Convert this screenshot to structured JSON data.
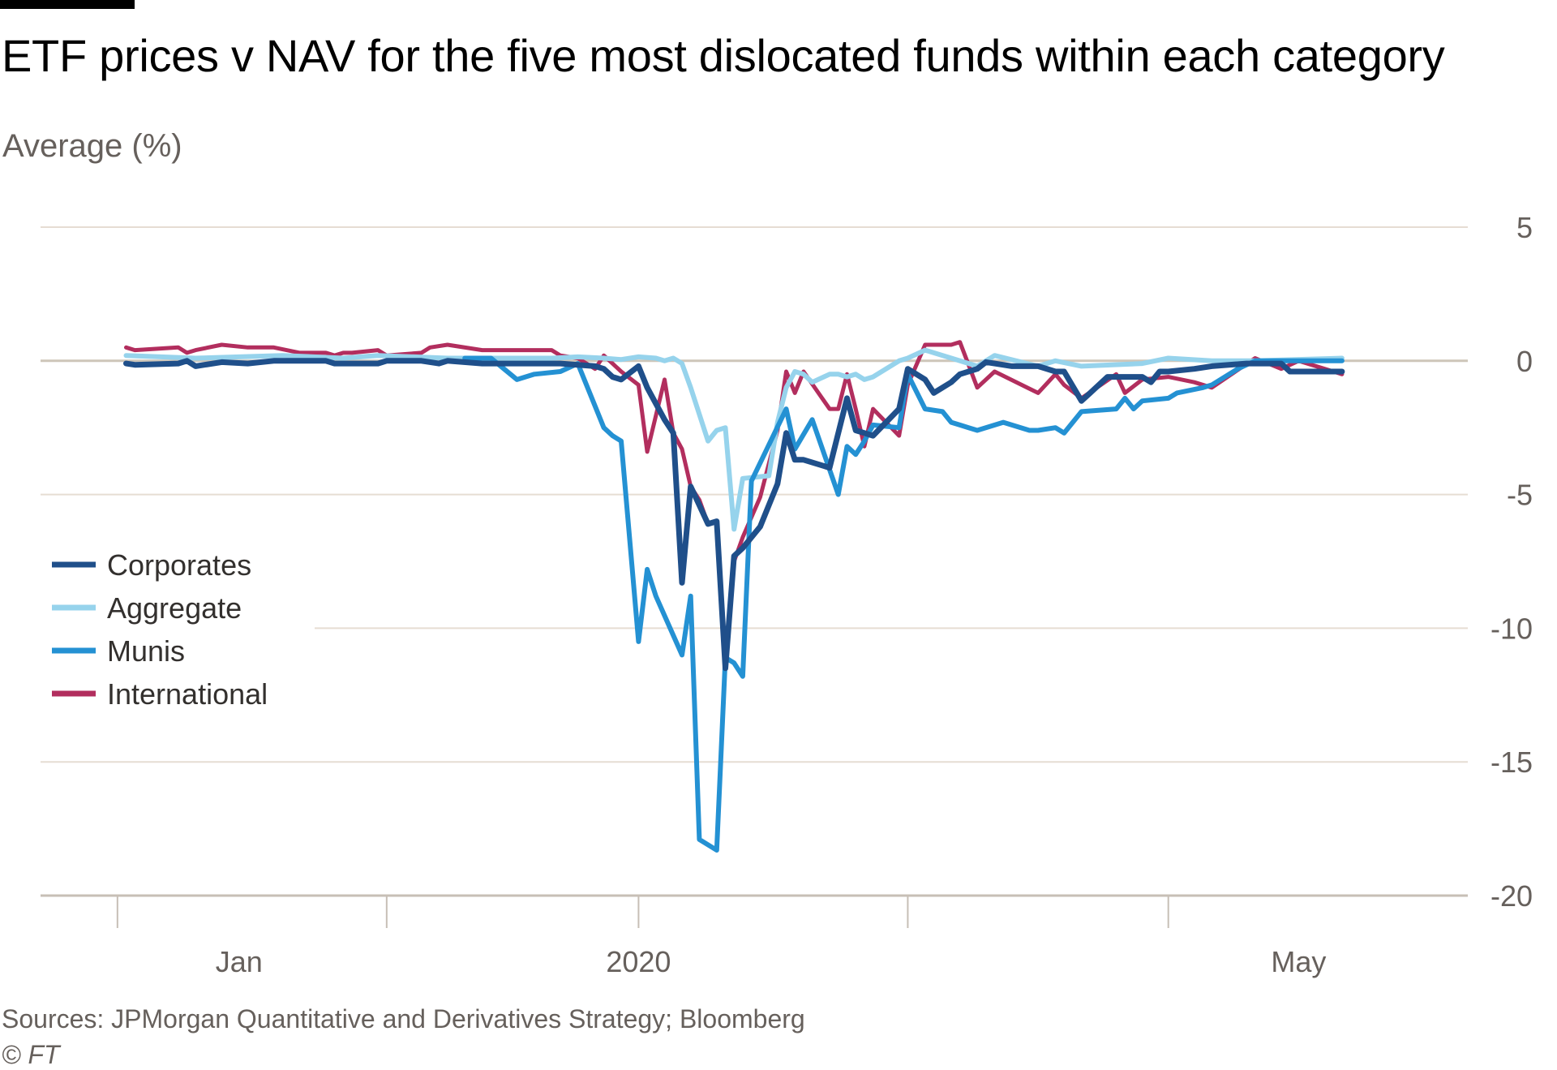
{
  "header": {
    "title": "ETF prices v NAV for the five most dislocated funds within each category",
    "subtitle": "Average (%)"
  },
  "footer": {
    "source": "Sources: JPMorgan Quantitative and Derivatives Strategy; Bloomberg",
    "copyright": "© FT"
  },
  "chart_data": {
    "type": "line",
    "title": "ETF prices v NAV for the five most dislocated funds within each category",
    "ylabel": "Average (%)",
    "xlabel": "",
    "ylim": [
      -20,
      5
    ],
    "y_ticks": [
      5,
      0,
      -5,
      -10,
      -15,
      -20
    ],
    "x_tick_labels": [
      {
        "label": "Jan",
        "x": "2020-01-15"
      },
      {
        "label": "2020",
        "x": "2020-03-01"
      },
      {
        "label": "May",
        "x": "2020-05-16"
      }
    ],
    "x_ticks": [
      "2020-01-01",
      "2020-02-01",
      "2020-03-01",
      "2020-04-01",
      "2020-05-01"
    ],
    "xlim": [
      "2019-12-28",
      "2020-05-31"
    ],
    "grid": true,
    "legend_position": "left",
    "colors": {
      "Corporates": "#1f4f8a",
      "Aggregate": "#96d3ec",
      "Munis": "#2491d3",
      "International": "#b22e5e",
      "gridline": "#e6ddd3",
      "zeroline": "#cec6b9",
      "axis": "#c7bfb6"
    },
    "series": [
      {
        "name": "Corporates",
        "x": [
          "2020-01-02",
          "2020-01-03",
          "2020-01-08",
          "2020-01-09",
          "2020-01-10",
          "2020-01-13",
          "2020-01-16",
          "2020-01-19",
          "2020-01-22",
          "2020-01-25",
          "2020-01-26",
          "2020-01-27",
          "2020-01-31",
          "2020-02-01",
          "2020-02-05",
          "2020-02-07",
          "2020-02-08",
          "2020-02-12",
          "2020-02-15",
          "2020-02-20",
          "2020-02-21",
          "2020-02-25",
          "2020-02-26",
          "2020-02-27",
          "2020-02-28",
          "2020-03-01",
          "2020-03-02",
          "2020-03-04",
          "2020-03-05",
          "2020-03-06",
          "2020-03-07",
          "2020-03-09",
          "2020-03-10",
          "2020-03-11",
          "2020-03-12",
          "2020-03-13",
          "2020-03-15",
          "2020-03-17",
          "2020-03-18",
          "2020-03-19",
          "2020-03-20",
          "2020-03-23",
          "2020-03-25",
          "2020-03-26",
          "2020-03-27",
          "2020-03-28",
          "2020-03-31",
          "2020-04-01",
          "2020-04-03",
          "2020-04-04",
          "2020-04-06",
          "2020-04-07",
          "2020-04-09",
          "2020-04-10",
          "2020-04-11",
          "2020-04-13",
          "2020-04-16",
          "2020-04-18",
          "2020-04-19",
          "2020-04-21",
          "2020-04-22",
          "2020-04-24",
          "2020-04-26",
          "2020-04-28",
          "2020-04-29",
          "2020-04-30",
          "2020-05-01",
          "2020-05-04",
          "2020-05-06",
          "2020-05-10",
          "2020-05-14",
          "2020-05-15",
          "2020-05-18",
          "2020-05-19",
          "2020-05-21"
        ],
        "values": [
          -0.1,
          -0.15,
          -0.1,
          0,
          -0.2,
          -0.05,
          -0.1,
          0,
          0,
          0,
          -0.1,
          -0.1,
          -0.1,
          0,
          0,
          -0.1,
          0,
          -0.1,
          -0.1,
          -0.1,
          -0.1,
          -0.2,
          -0.3,
          -0.6,
          -0.7,
          -0.2,
          -1.0,
          -2.2,
          -2.7,
          -8.3,
          -4.7,
          -6.1,
          -6.0,
          -11.5,
          -7.3,
          -7.0,
          -6.2,
          -4.6,
          -2.7,
          -3.7,
          -3.7,
          -4.0,
          -1.4,
          -2.6,
          -2.7,
          -2.8,
          -1.8,
          -0.3,
          -0.7,
          -1.2,
          -0.8,
          -0.5,
          -0.3,
          -0.05,
          -0.1,
          -0.2,
          -0.2,
          -0.4,
          -0.4,
          -1.5,
          -1.2,
          -0.6,
          -0.6,
          -0.6,
          -0.8,
          -0.4,
          -0.4,
          -0.3,
          -0.2,
          -0.1,
          -0.1,
          -0.4,
          -0.4,
          -0.4,
          -0.4
        ]
      },
      {
        "name": "Aggregate",
        "x": [
          "2020-01-02",
          "2020-01-10",
          "2020-01-20",
          "2020-01-27",
          "2020-01-31",
          "2020-02-08",
          "2020-02-15",
          "2020-02-20",
          "2020-02-23",
          "2020-02-26",
          "2020-02-28",
          "2020-03-01",
          "2020-03-03",
          "2020-03-04",
          "2020-03-05",
          "2020-03-06",
          "2020-03-07",
          "2020-03-09",
          "2020-03-10",
          "2020-03-11",
          "2020-03-12",
          "2020-03-13",
          "2020-03-16",
          "2020-03-17",
          "2020-03-18",
          "2020-03-19",
          "2020-03-20",
          "2020-03-21",
          "2020-03-23",
          "2020-03-24",
          "2020-03-25",
          "2020-03-26",
          "2020-03-27",
          "2020-03-28",
          "2020-03-31",
          "2020-04-01",
          "2020-04-03",
          "2020-04-04",
          "2020-04-07",
          "2020-04-09",
          "2020-04-11",
          "2020-04-16",
          "2020-04-18",
          "2020-04-21",
          "2020-04-28",
          "2020-05-01",
          "2020-05-06",
          "2020-05-11",
          "2020-05-21"
        ],
        "values": [
          0.2,
          0.1,
          0.2,
          0.1,
          0.2,
          0.1,
          0.1,
          0.1,
          0.15,
          0.1,
          0.05,
          0.15,
          0.1,
          0.0,
          0.1,
          -0.1,
          -1.0,
          -3.0,
          -2.6,
          -2.5,
          -6.3,
          -4.4,
          -4.3,
          -2.3,
          -1.0,
          -0.4,
          -0.5,
          -0.8,
          -0.5,
          -0.5,
          -0.6,
          -0.5,
          -0.7,
          -0.6,
          0,
          0.1,
          0.4,
          0.3,
          0,
          -0.2,
          0.2,
          -0.2,
          0.0,
          -0.2,
          -0.1,
          0.1,
          0.0,
          0.0,
          0.1
        ]
      },
      {
        "name": "Munis",
        "x": [
          "2020-02-10",
          "2020-02-13",
          "2020-02-16",
          "2020-02-18",
          "2020-02-21",
          "2020-02-23",
          "2020-02-26",
          "2020-02-27",
          "2020-02-28",
          "2020-03-01",
          "2020-03-02",
          "2020-03-03",
          "2020-03-06",
          "2020-03-07",
          "2020-03-08",
          "2020-03-10",
          "2020-03-11",
          "2020-03-12",
          "2020-03-13",
          "2020-03-14",
          "2020-03-18",
          "2020-03-19",
          "2020-03-21",
          "2020-03-24",
          "2020-03-25",
          "2020-03-26",
          "2020-03-27",
          "2020-03-28",
          "2020-03-31",
          "2020-04-01",
          "2020-04-03",
          "2020-04-05",
          "2020-04-06",
          "2020-04-07",
          "2020-04-08",
          "2020-04-09",
          "2020-04-12",
          "2020-04-15",
          "2020-04-16",
          "2020-04-18",
          "2020-04-19",
          "2020-04-21",
          "2020-04-25",
          "2020-04-26",
          "2020-04-27",
          "2020-04-28",
          "2020-05-01",
          "2020-05-02",
          "2020-05-05",
          "2020-05-06",
          "2020-05-09",
          "2020-05-11",
          "2020-05-14",
          "2020-05-17",
          "2020-05-19",
          "2020-05-21"
        ],
        "values": [
          0.1,
          0.1,
          -0.7,
          -0.5,
          -0.4,
          -0.1,
          -2.5,
          -2.8,
          -3.0,
          -10.5,
          -7.8,
          -8.8,
          -11.0,
          -8.8,
          -17.9,
          -18.3,
          -11.1,
          -11.3,
          -11.8,
          -4.5,
          -1.8,
          -3.3,
          -2.2,
          -5.0,
          -3.2,
          -3.5,
          -3.0,
          -2.4,
          -2.5,
          -0.5,
          -1.8,
          -1.9,
          -2.3,
          -2.4,
          -2.5,
          -2.6,
          -2.3,
          -2.6,
          -2.6,
          -2.5,
          -2.7,
          -1.9,
          -1.8,
          -1.4,
          -1.8,
          -1.5,
          -1.4,
          -1.2,
          -1.0,
          -0.9,
          -0.3,
          0,
          0,
          0,
          0,
          0
        ]
      },
      {
        "name": "International",
        "x": [
          "2020-01-02",
          "2020-01-03",
          "2020-01-08",
          "2020-01-09",
          "2020-01-10",
          "2020-01-13",
          "2020-01-16",
          "2020-01-19",
          "2020-01-22",
          "2020-01-25",
          "2020-01-26",
          "2020-01-27",
          "2020-01-28",
          "2020-01-31",
          "2020-02-01",
          "2020-02-05",
          "2020-02-06",
          "2020-02-08",
          "2020-02-12",
          "2020-02-15",
          "2020-02-20",
          "2020-02-21",
          "2020-02-23",
          "2020-02-25",
          "2020-02-26",
          "2020-02-27",
          "2020-02-28",
          "2020-03-01",
          "2020-03-02",
          "2020-03-04",
          "2020-03-05",
          "2020-03-06",
          "2020-03-07",
          "2020-03-08",
          "2020-03-09",
          "2020-03-10",
          "2020-03-11",
          "2020-03-12",
          "2020-03-13",
          "2020-03-15",
          "2020-03-17",
          "2020-03-18",
          "2020-03-19",
          "2020-03-20",
          "2020-03-23",
          "2020-03-24",
          "2020-03-25",
          "2020-03-26",
          "2020-03-27",
          "2020-03-28",
          "2020-03-31",
          "2020-04-01",
          "2020-04-03",
          "2020-04-05",
          "2020-04-06",
          "2020-04-07",
          "2020-04-09",
          "2020-04-11",
          "2020-04-16",
          "2020-04-18",
          "2020-04-19",
          "2020-04-21",
          "2020-04-25",
          "2020-04-26",
          "2020-04-28",
          "2020-05-01",
          "2020-05-04",
          "2020-05-06",
          "2020-05-11",
          "2020-05-14",
          "2020-05-16",
          "2020-05-21"
        ],
        "values": [
          0.5,
          0.4,
          0.5,
          0.3,
          0.4,
          0.6,
          0.5,
          0.5,
          0.3,
          0.3,
          0.2,
          0.3,
          0.3,
          0.4,
          0.2,
          0.3,
          0.5,
          0.6,
          0.4,
          0.4,
          0.4,
          0.2,
          0.1,
          -0.3,
          0.2,
          -0.1,
          -0.4,
          -0.9,
          -3.4,
          -0.7,
          -2.7,
          -3.3,
          -4.7,
          -5.2,
          -6.1,
          -6.0,
          -11.4,
          -7.5,
          -6.6,
          -5.1,
          -2.6,
          -0.4,
          -1.2,
          -0.4,
          -1.8,
          -1.8,
          -0.5,
          -1.8,
          -3.2,
          -1.8,
          -2.8,
          -0.9,
          0.6,
          0.6,
          0.6,
          0.7,
          -1.0,
          -0.4,
          -1.2,
          -0.5,
          -0.9,
          -1.4,
          -0.5,
          -1.2,
          -0.7,
          -0.6,
          -0.8,
          -1.0,
          0.1,
          -0.3,
          0.0,
          -0.5
        ]
      }
    ]
  }
}
